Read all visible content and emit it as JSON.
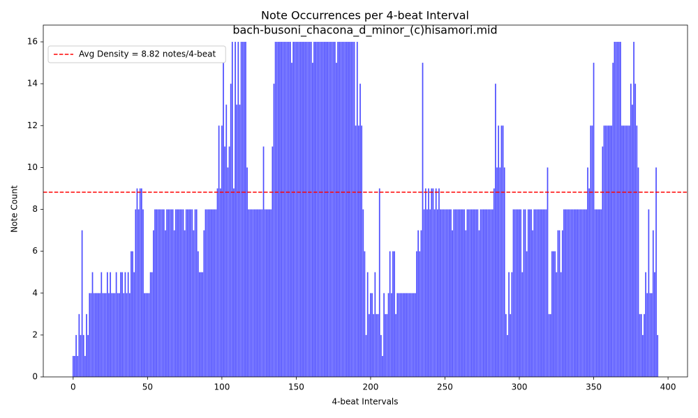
{
  "chart_data": {
    "type": "bar",
    "title": "Note Occurrences per 4-beat Interval",
    "subtitle": "bach-busoni_chacona_d_minor_(c)hisamori.mid",
    "x_label": "4-beat Intervals",
    "y_label": "Note Count",
    "color": "#0000ff",
    "alpha": 0.7,
    "bar_width": 0.8,
    "xlim": [
      -20.1,
      413.1
    ],
    "ylim": [
      0,
      16.8
    ],
    "xticks": [
      0,
      50,
      100,
      150,
      200,
      250,
      300,
      350,
      400
    ],
    "yticks": [
      0,
      2,
      4,
      6,
      8,
      10,
      12,
      14,
      16
    ],
    "grid": false,
    "legend": "upper left",
    "avg_line": {
      "value": 8.82,
      "label": "Avg Density = 8.82 notes/4-beat",
      "color": "#ff0000",
      "style": "dashed"
    },
    "values": [
      1,
      1,
      2,
      1,
      3,
      2,
      7,
      2,
      1,
      3,
      2,
      4,
      4,
      5,
      4,
      4,
      4,
      4,
      4,
      5,
      4,
      4,
      4,
      5,
      4,
      5,
      4,
      4,
      4,
      5,
      4,
      4,
      5,
      5,
      4,
      5,
      4,
      5,
      4,
      6,
      6,
      5,
      8,
      9,
      8,
      9,
      9,
      8,
      4,
      4,
      4,
      4,
      5,
      5,
      7,
      8,
      8,
      8,
      8,
      8,
      8,
      8,
      7,
      8,
      8,
      8,
      8,
      8,
      7,
      8,
      8,
      8,
      8,
      8,
      8,
      7,
      8,
      8,
      8,
      8,
      8,
      7,
      8,
      8,
      6,
      5,
      5,
      5,
      7,
      8,
      8,
      8,
      8,
      8,
      8,
      8,
      8,
      9,
      12,
      9,
      12,
      15,
      11,
      13,
      10,
      11,
      14,
      16,
      9,
      16,
      13,
      16,
      13,
      16,
      16,
      16,
      16,
      10,
      8,
      8,
      8,
      8,
      8,
      8,
      8,
      8,
      8,
      8,
      11,
      8,
      8,
      8,
      8,
      8,
      11,
      14,
      16,
      16,
      16,
      16,
      16,
      16,
      16,
      16,
      16,
      16,
      16,
      15,
      16,
      16,
      16,
      16,
      16,
      16,
      16,
      16,
      16,
      16,
      16,
      16,
      16,
      15,
      16,
      16,
      16,
      16,
      16,
      16,
      16,
      16,
      16,
      16,
      16,
      16,
      16,
      16,
      16,
      15,
      16,
      16,
      16,
      16,
      16,
      16,
      16,
      16,
      16,
      16,
      16,
      16,
      12,
      16,
      12,
      14,
      12,
      8,
      6,
      2,
      5,
      3,
      4,
      4,
      3,
      5,
      3,
      3,
      9,
      2,
      1,
      4,
      3,
      3,
      4,
      6,
      4,
      6,
      6,
      3,
      4,
      4,
      4,
      4,
      4,
      4,
      4,
      4,
      4,
      4,
      4,
      4,
      4,
      6,
      7,
      6,
      7,
      15,
      8,
      9,
      8,
      9,
      8,
      9,
      9,
      8,
      9,
      8,
      9,
      8,
      8,
      8,
      8,
      8,
      8,
      8,
      8,
      7,
      8,
      8,
      8,
      8,
      8,
      8,
      8,
      8,
      7,
      8,
      8,
      8,
      8,
      8,
      8,
      8,
      8,
      7,
      8,
      8,
      8,
      8,
      8,
      8,
      8,
      8,
      8,
      9,
      14,
      10,
      12,
      10,
      12,
      12,
      10,
      3,
      2,
      5,
      3,
      5,
      8,
      8,
      8,
      8,
      8,
      8,
      5,
      8,
      8,
      6,
      8,
      8,
      8,
      7,
      8,
      8,
      8,
      8,
      8,
      8,
      8,
      8,
      8,
      10,
      3,
      3,
      6,
      6,
      6,
      5,
      7,
      7,
      5,
      7,
      8,
      8,
      8,
      8,
      8,
      8,
      8,
      8,
      8,
      8,
      8,
      8,
      8,
      8,
      8,
      8,
      10,
      9,
      12,
      12,
      15,
      8,
      8,
      8,
      8,
      8,
      11,
      12,
      12,
      12,
      12,
      12,
      12,
      15,
      16,
      16,
      16,
      16,
      16,
      12,
      12,
      12,
      12,
      12,
      12,
      14,
      13,
      16,
      14,
      12,
      10,
      3,
      3,
      2,
      3,
      5,
      4,
      8,
      4,
      4,
      7,
      5,
      10,
      2
    ]
  }
}
